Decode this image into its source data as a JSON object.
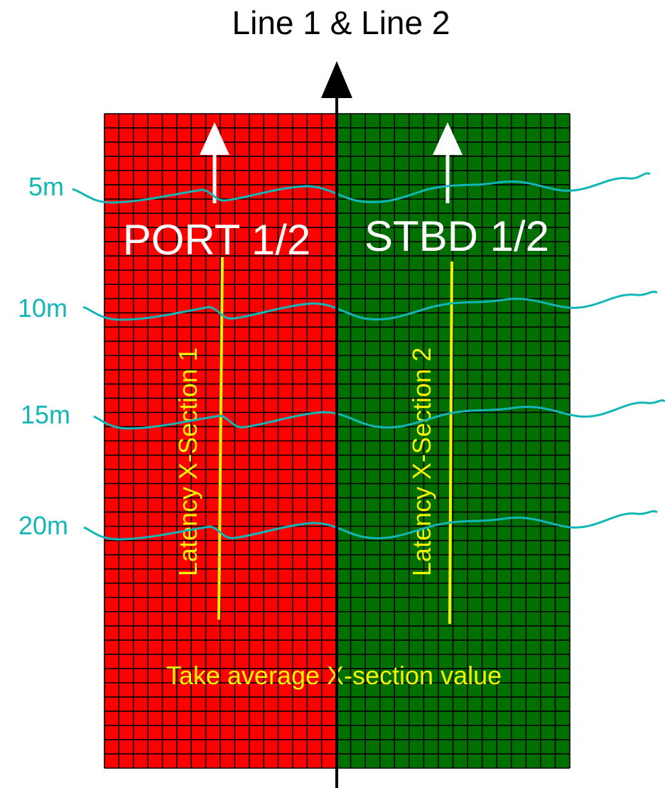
{
  "title": "Line 1 & Line 2",
  "halves": {
    "port": {
      "label": "PORT 1/2",
      "latency_label": "Latency  X-Section 1"
    },
    "stbd": {
      "label": "STBD 1/2",
      "latency_label": "Latency  X-Section 2"
    }
  },
  "depths": [
    {
      "label": "5m"
    },
    {
      "label": "10m"
    },
    {
      "label": "15m"
    },
    {
      "label": "20m"
    }
  ],
  "note": "Take average X-section value",
  "colors": {
    "port_fill": "#ff0000",
    "stbd_fill": "#007000",
    "grid_line": "#000000",
    "wave": "#13b6b6",
    "depth_text": "#13b6b6",
    "latency": "#f4f400",
    "note_text": "#f4f400",
    "arrow_white": "#ffffff",
    "center_line": "#000000"
  }
}
